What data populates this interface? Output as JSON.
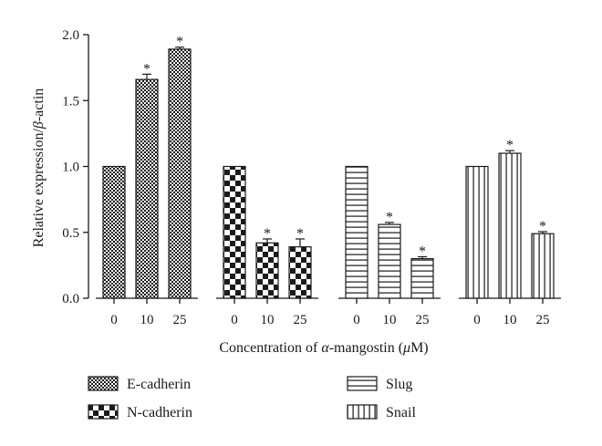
{
  "chart_data": {
    "type": "bar",
    "ylabel_parts": [
      "Relative expression/",
      "β",
      "-actin"
    ],
    "xlabel_parts": [
      "Concentration of ",
      "α",
      "-mangostin (",
      "μ",
      "M)"
    ],
    "ylim": [
      0,
      2.0
    ],
    "yticks": [
      "0.0",
      "0.5",
      "1.0",
      "1.5",
      "2.0"
    ],
    "groups": [
      {
        "name": "E-cadherin",
        "pattern": "fine-checker",
        "categories": [
          "0",
          "10",
          "25"
        ],
        "values": [
          1.0,
          1.66,
          1.89
        ],
        "errors": [
          0,
          0.04,
          0.015
        ],
        "significant": [
          false,
          true,
          true
        ]
      },
      {
        "name": "N-cadherin",
        "pattern": "coarse-checker",
        "categories": [
          "0",
          "10",
          "25"
        ],
        "values": [
          1.0,
          0.42,
          0.39
        ],
        "errors": [
          0,
          0.03,
          0.06
        ],
        "significant": [
          false,
          true,
          true
        ]
      },
      {
        "name": "Slug",
        "pattern": "horizontal-lines",
        "categories": [
          "0",
          "10",
          "25"
        ],
        "values": [
          1.0,
          0.56,
          0.3
        ],
        "errors": [
          0,
          0.015,
          0.015
        ],
        "significant": [
          false,
          true,
          true
        ]
      },
      {
        "name": "Snail",
        "pattern": "vertical-lines",
        "categories": [
          "0",
          "10",
          "25"
        ],
        "values": [
          1.0,
          1.1,
          0.49
        ],
        "errors": [
          0,
          0.02,
          0.015
        ],
        "significant": [
          false,
          true,
          true
        ]
      }
    ],
    "significance_mark": "*",
    "legend": [
      "E-cadherin",
      "N-cadherin",
      "Slug",
      "Snail"
    ],
    "grid": false
  }
}
